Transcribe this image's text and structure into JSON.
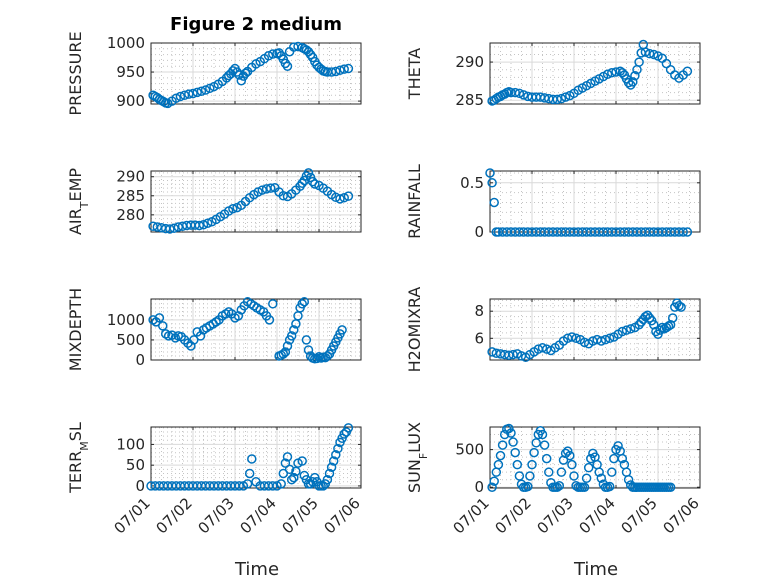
{
  "chart_data": [
    {
      "type": "scatter",
      "title": "Figure 2 medium",
      "ylabel": "PRESSURE",
      "xlabel": "",
      "xlim": [
        "07/01",
        "07/06"
      ],
      "ylim": [
        895,
        1000
      ],
      "yticks": [
        900,
        950,
        1000
      ],
      "xticks": [
        "07/01",
        "07/02",
        "07/03",
        "07/04",
        "07/05",
        "07/06"
      ],
      "show_xticklabels": false,
      "grid": "on, minor on",
      "x_days": [
        0.05,
        0.1,
        0.15,
        0.2,
        0.25,
        0.3,
        0.35,
        0.4,
        0.5,
        0.6,
        0.7,
        0.8,
        0.9,
        1.0,
        1.1,
        1.2,
        1.3,
        1.4,
        1.5,
        1.6,
        1.7,
        1.8,
        1.85,
        1.9,
        1.95,
        2.0,
        2.05,
        2.1,
        2.15,
        2.2,
        2.25,
        2.3,
        2.4,
        2.5,
        2.6,
        2.7,
        2.8,
        2.9,
        3.0,
        3.05,
        3.1,
        3.15,
        3.2,
        3.25,
        3.3,
        3.4,
        3.5,
        3.6,
        3.65,
        3.7,
        3.75,
        3.8,
        3.85,
        3.9,
        3.95,
        4.0,
        4.05,
        4.1,
        4.15,
        4.2,
        4.3,
        4.4,
        4.5,
        4.6,
        4.7
      ],
      "y": [
        910,
        908,
        906,
        903,
        901,
        899,
        897,
        896,
        900,
        905,
        908,
        910,
        912,
        913,
        915,
        917,
        919,
        922,
        925,
        929,
        934,
        940,
        944,
        947,
        952,
        956,
        950,
        945,
        935,
        943,
        948,
        951,
        958,
        964,
        968,
        973,
        978,
        981,
        982,
        983,
        978,
        972,
        965,
        960,
        985,
        993,
        994,
        992,
        990,
        988,
        985,
        980,
        975,
        968,
        962,
        958,
        955,
        952,
        951,
        950,
        950,
        951,
        953,
        955,
        956
      ]
    },
    {
      "type": "scatter",
      "ylabel": "THETA",
      "ylim": [
        284.5,
        292.5
      ],
      "yticks": [
        285,
        290
      ],
      "xticks": [
        "07/01",
        "07/02",
        "07/03",
        "07/04",
        "07/05",
        "07/06"
      ],
      "show_xticklabels": false,
      "grid": "on, minor on",
      "x_days": [
        0.05,
        0.1,
        0.15,
        0.2,
        0.25,
        0.3,
        0.35,
        0.4,
        0.45,
        0.5,
        0.6,
        0.7,
        0.8,
        0.9,
        1.0,
        1.1,
        1.2,
        1.3,
        1.4,
        1.5,
        1.6,
        1.7,
        1.8,
        1.9,
        2.0,
        2.1,
        2.2,
        2.3,
        2.4,
        2.5,
        2.6,
        2.7,
        2.8,
        2.9,
        3.0,
        3.1,
        3.15,
        3.2,
        3.25,
        3.3,
        3.35,
        3.4,
        3.45,
        3.5,
        3.55,
        3.6,
        3.65,
        3.7,
        3.8,
        3.9,
        4.0,
        4.1,
        4.2,
        4.3,
        4.4,
        4.5,
        4.6,
        4.7
      ],
      "y": [
        284.9,
        285.0,
        285.2,
        285.4,
        285.5,
        285.7,
        285.8,
        286.0,
        286.1,
        286.0,
        286.0,
        285.9,
        285.7,
        285.5,
        285.4,
        285.4,
        285.4,
        285.3,
        285.2,
        285.1,
        285.1,
        285.2,
        285.4,
        285.6,
        285.9,
        286.3,
        286.6,
        286.9,
        287.2,
        287.5,
        287.8,
        288.1,
        288.4,
        288.6,
        288.7,
        288.8,
        288.6,
        288.3,
        287.8,
        287.3,
        287.0,
        287.4,
        288.2,
        289.0,
        290.0,
        291.2,
        292.3,
        291.3,
        291.1,
        291.0,
        290.8,
        290.5,
        289.8,
        289.0,
        288.3,
        287.9,
        288.3,
        288.8
      ]
    },
    {
      "type": "scatter",
      "ylabel": "AIR_TEMP",
      "ylim": [
        275.5,
        291.5
      ],
      "yticks": [
        280,
        285,
        290
      ],
      "xticks": [
        "07/01",
        "07/02",
        "07/03",
        "07/04",
        "07/05",
        "07/06"
      ],
      "show_xticklabels": false,
      "grid": "on, minor on",
      "x_days": [
        0.05,
        0.15,
        0.25,
        0.35,
        0.45,
        0.55,
        0.65,
        0.75,
        0.85,
        0.95,
        1.05,
        1.15,
        1.25,
        1.35,
        1.45,
        1.55,
        1.65,
        1.75,
        1.85,
        1.95,
        2.05,
        2.15,
        2.25,
        2.35,
        2.45,
        2.55,
        2.65,
        2.75,
        2.85,
        2.95,
        3.05,
        3.15,
        3.25,
        3.35,
        3.45,
        3.55,
        3.6,
        3.65,
        3.7,
        3.75,
        3.8,
        3.85,
        3.9,
        4.0,
        4.1,
        4.2,
        4.3,
        4.4,
        4.5,
        4.6,
        4.7
      ],
      "y": [
        277.0,
        276.8,
        276.6,
        276.4,
        276.3,
        276.5,
        276.8,
        277.0,
        277.2,
        277.3,
        277.3,
        277.2,
        277.4,
        277.8,
        278.2,
        278.8,
        279.5,
        280.2,
        281.0,
        281.6,
        281.9,
        282.5,
        283.5,
        284.5,
        285.3,
        286.0,
        286.5,
        286.8,
        287.0,
        287.1,
        286.0,
        285.0,
        284.8,
        285.5,
        286.5,
        287.5,
        288.3,
        289.0,
        290.2,
        291.0,
        289.8,
        288.7,
        288.1,
        287.7,
        287.0,
        286.2,
        285.3,
        284.6,
        284.2,
        284.5,
        284.9
      ]
    },
    {
      "type": "scatter",
      "ylabel": "RAINFALL",
      "ylim": [
        0,
        0.62
      ],
      "yticks": [
        0,
        0.5
      ],
      "xticks": [
        "07/01",
        "07/02",
        "07/03",
        "07/04",
        "07/05",
        "07/06"
      ],
      "show_xticklabels": false,
      "grid": "on, minor on",
      "x_days": [
        0.0,
        0.05,
        0.1,
        0.15,
        0.2,
        0.3,
        0.4,
        0.5,
        0.6,
        0.7,
        0.8,
        0.9,
        1.0,
        1.1,
        1.2,
        1.3,
        1.4,
        1.5,
        1.6,
        1.7,
        1.8,
        1.9,
        2.0,
        2.1,
        2.2,
        2.3,
        2.4,
        2.5,
        2.6,
        2.7,
        2.8,
        2.9,
        3.0,
        3.1,
        3.2,
        3.3,
        3.4,
        3.5,
        3.6,
        3.7,
        3.8,
        3.9,
        4.0,
        4.1,
        4.2,
        4.3,
        4.4,
        4.5,
        4.6,
        4.7
      ],
      "y": [
        0.6,
        0.5,
        0.3,
        0,
        0,
        0,
        0,
        0,
        0,
        0,
        0,
        0,
        0,
        0,
        0,
        0,
        0,
        0,
        0,
        0,
        0,
        0,
        0,
        0,
        0,
        0,
        0,
        0,
        0,
        0,
        0,
        0,
        0,
        0,
        0,
        0,
        0,
        0,
        0,
        0,
        0,
        0,
        0,
        0,
        0,
        0,
        0,
        0,
        0,
        0
      ]
    },
    {
      "type": "scatter",
      "ylabel": "MIXDEPTH",
      "ylim": [
        0,
        1520
      ],
      "yticks": [
        0,
        500,
        1000
      ],
      "xticks": [
        "07/01",
        "07/02",
        "07/03",
        "07/04",
        "07/05",
        "07/06"
      ],
      "show_xticklabels": false,
      "grid": "on, minor on",
      "x_days": [
        0.05,
        0.12,
        0.2,
        0.28,
        0.35,
        0.42,
        0.5,
        0.58,
        0.65,
        0.72,
        0.8,
        0.88,
        0.95,
        1.02,
        1.1,
        1.18,
        1.25,
        1.32,
        1.4,
        1.48,
        1.55,
        1.62,
        1.7,
        1.78,
        1.85,
        1.92,
        2.0,
        2.08,
        2.15,
        2.22,
        2.3,
        2.38,
        2.45,
        2.52,
        2.6,
        2.68,
        2.75,
        2.82,
        2.9,
        3.05,
        3.1,
        3.15,
        3.2,
        3.25,
        3.3,
        3.35,
        3.4,
        3.45,
        3.5,
        3.55,
        3.6,
        3.65,
        3.7,
        3.75,
        3.8,
        3.85,
        3.9,
        3.95,
        4.0,
        4.05,
        4.1,
        4.15,
        4.2,
        4.25,
        4.3,
        4.35,
        4.4,
        4.45,
        4.5,
        4.55
      ],
      "y": [
        1000,
        950,
        1050,
        850,
        650,
        600,
        620,
        550,
        600,
        580,
        500,
        420,
        350,
        500,
        700,
        600,
        750,
        800,
        850,
        900,
        950,
        1000,
        1100,
        1150,
        1200,
        1150,
        1050,
        1100,
        1250,
        1350,
        1450,
        1400,
        1350,
        1300,
        1250,
        1200,
        1100,
        1000,
        1400,
        100,
        120,
        150,
        200,
        350,
        500,
        600,
        750,
        900,
        1100,
        1300,
        1400,
        1450,
        500,
        250,
        100,
        50,
        30,
        40,
        80,
        50,
        70,
        60,
        100,
        150,
        250,
        350,
        450,
        550,
        650,
        750
      ]
    },
    {
      "type": "scatter",
      "ylabel": "H2OMIXRA",
      "ylim": [
        4.4,
        8.9
      ],
      "yticks": [
        6,
        8
      ],
      "xticks": [
        "07/01",
        "07/02",
        "07/03",
        "07/04",
        "07/05",
        "07/06"
      ],
      "show_xticklabels": false,
      "grid": "on, minor on",
      "x_days": [
        0.05,
        0.15,
        0.25,
        0.35,
        0.45,
        0.55,
        0.65,
        0.75,
        0.85,
        0.95,
        1.05,
        1.15,
        1.25,
        1.35,
        1.45,
        1.55,
        1.65,
        1.75,
        1.85,
        1.95,
        2.05,
        2.15,
        2.25,
        2.35,
        2.45,
        2.55,
        2.65,
        2.75,
        2.85,
        2.95,
        3.05,
        3.15,
        3.25,
        3.35,
        3.45,
        3.55,
        3.6,
        3.65,
        3.7,
        3.75,
        3.8,
        3.85,
        3.9,
        3.95,
        4.0,
        4.05,
        4.1,
        4.15,
        4.2,
        4.25,
        4.3,
        4.35,
        4.4,
        4.45,
        4.5,
        4.55
      ],
      "y": [
        5.0,
        4.9,
        4.85,
        4.8,
        4.75,
        4.8,
        4.85,
        4.7,
        4.6,
        4.8,
        5.0,
        5.2,
        5.3,
        5.2,
        5.1,
        5.3,
        5.5,
        5.8,
        6.0,
        6.1,
        6.0,
        5.9,
        5.7,
        5.6,
        5.8,
        5.9,
        5.8,
        5.9,
        6.0,
        6.1,
        6.3,
        6.5,
        6.6,
        6.7,
        6.8,
        7.0,
        7.2,
        7.4,
        7.6,
        7.7,
        7.5,
        7.3,
        7.0,
        6.5,
        6.3,
        6.6,
        6.8,
        6.7,
        6.8,
        6.9,
        7.0,
        7.5,
        8.3,
        8.6,
        8.4,
        8.3
      ]
    },
    {
      "type": "scatter",
      "ylabel": "TERR_MSL",
      "ylim": [
        -5,
        142
      ],
      "yticks": [
        0,
        50,
        100
      ],
      "xticks": [
        "07/01",
        "07/02",
        "07/03",
        "07/04",
        "07/05",
        "07/06"
      ],
      "show_xticklabels": true,
      "grid": "on, minor on",
      "x_days": [
        0.0,
        0.1,
        0.2,
        0.3,
        0.4,
        0.5,
        0.6,
        0.7,
        0.8,
        0.9,
        1.0,
        1.1,
        1.2,
        1.3,
        1.4,
        1.5,
        1.6,
        1.7,
        1.8,
        1.9,
        2.0,
        2.1,
        2.2,
        2.3,
        2.35,
        2.4,
        2.5,
        2.6,
        2.7,
        2.8,
        2.9,
        3.0,
        3.1,
        3.15,
        3.2,
        3.25,
        3.3,
        3.35,
        3.4,
        3.45,
        3.5,
        3.6,
        3.65,
        3.7,
        3.75,
        3.8,
        3.85,
        3.9,
        3.95,
        4.0,
        4.05,
        4.1,
        4.15,
        4.2,
        4.25,
        4.3,
        4.35,
        4.4,
        4.45,
        4.5,
        4.55,
        4.6,
        4.65,
        4.7
      ],
      "y": [
        0,
        0,
        0,
        0,
        0,
        0,
        0,
        0,
        0,
        0,
        0,
        0,
        0,
        0,
        0,
        0,
        0,
        0,
        0,
        0,
        0,
        0,
        0,
        5,
        30,
        65,
        10,
        0,
        0,
        0,
        0,
        0,
        5,
        30,
        55,
        70,
        40,
        15,
        20,
        35,
        55,
        60,
        25,
        15,
        5,
        5,
        10,
        20,
        10,
        0,
        0,
        0,
        5,
        15,
        30,
        45,
        60,
        75,
        90,
        105,
        115,
        125,
        130,
        140
      ]
    },
    {
      "type": "scatter",
      "ylabel": "SUN_FLUX",
      "ylim": [
        -10,
        800
      ],
      "yticks": [
        0,
        500
      ],
      "xticks": [
        "07/01",
        "07/02",
        "07/03",
        "07/04",
        "07/05",
        "07/06"
      ],
      "show_xticklabels": true,
      "grid": "on, minor on",
      "x_days": [
        0.05,
        0.1,
        0.15,
        0.2,
        0.25,
        0.3,
        0.35,
        0.4,
        0.45,
        0.5,
        0.55,
        0.6,
        0.65,
        0.7,
        0.75,
        0.8,
        0.85,
        0.9,
        0.95,
        1.0,
        1.05,
        1.1,
        1.15,
        1.2,
        1.25,
        1.3,
        1.35,
        1.4,
        1.45,
        1.5,
        1.55,
        1.6,
        1.65,
        1.7,
        1.75,
        1.8,
        1.85,
        1.9,
        1.95,
        2.0,
        2.05,
        2.1,
        2.15,
        2.2,
        2.25,
        2.3,
        2.35,
        2.4,
        2.45,
        2.5,
        2.55,
        2.6,
        2.65,
        2.7,
        2.75,
        2.8,
        2.85,
        2.9,
        2.95,
        3.0,
        3.05,
        3.1,
        3.15,
        3.2,
        3.25,
        3.3,
        3.35,
        3.4,
        3.45,
        3.5,
        3.55,
        3.6,
        3.65,
        3.7,
        3.75,
        3.8,
        3.85,
        3.9,
        3.95,
        4.0,
        4.05,
        4.1,
        4.15,
        4.2,
        4.25,
        4.3
      ],
      "y": [
        0,
        80,
        200,
        300,
        420,
        560,
        700,
        770,
        780,
        720,
        600,
        460,
        300,
        150,
        40,
        0,
        0,
        10,
        150,
        300,
        460,
        590,
        700,
        750,
        700,
        560,
        380,
        200,
        60,
        0,
        0,
        0,
        20,
        200,
        360,
        450,
        480,
        420,
        300,
        150,
        20,
        0,
        0,
        0,
        0,
        120,
        260,
        380,
        450,
        400,
        300,
        200,
        120,
        40,
        0,
        0,
        10,
        200,
        380,
        500,
        550,
        480,
        380,
        300,
        200,
        100,
        30,
        0,
        0,
        0,
        0,
        0,
        0,
        0,
        0,
        0,
        0,
        0,
        0,
        0,
        0,
        0,
        0,
        0,
        0,
        0
      ]
    }
  ],
  "shared": {
    "xlabel": "Time",
    "xticks": [
      "07/01",
      "07/02",
      "07/03",
      "07/04",
      "07/05",
      "07/06"
    ]
  },
  "colors": {
    "marker": "#0072bd",
    "axis": "#262626",
    "grid": "#d9d9d9"
  }
}
